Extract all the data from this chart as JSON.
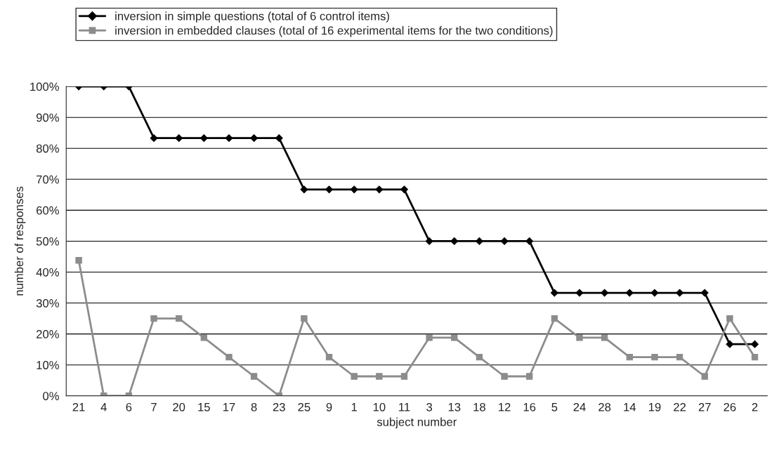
{
  "chart_data": {
    "type": "line",
    "xlabel": "subject number",
    "ylabel": "number of responses",
    "categories": [
      "21",
      "4",
      "6",
      "7",
      "20",
      "15",
      "17",
      "8",
      "23",
      "25",
      "9",
      "1",
      "10",
      "11",
      "3",
      "13",
      "18",
      "12",
      "16",
      "5",
      "24",
      "28",
      "14",
      "19",
      "22",
      "27",
      "26",
      "2"
    ],
    "series": [
      {
        "name": "inversion in simple questions (total of 6 control items)",
        "color": "#000000",
        "marker": "diamond",
        "values": [
          100,
          100,
          100,
          83.3,
          83.3,
          83.3,
          83.3,
          83.3,
          83.3,
          66.7,
          66.7,
          66.7,
          66.7,
          66.7,
          50,
          50,
          50,
          50,
          50,
          33.3,
          33.3,
          33.3,
          33.3,
          33.3,
          33.3,
          33.3,
          16.7,
          16.7
        ]
      },
      {
        "name": "inversion in embedded clauses (total of 16 experimental items for the two conditions)",
        "color": "#8c8c8c",
        "marker": "square",
        "values": [
          43.8,
          0,
          0,
          25,
          25,
          18.8,
          12.5,
          6.3,
          0,
          25,
          12.5,
          6.3,
          6.3,
          6.3,
          18.8,
          18.8,
          12.5,
          6.3,
          6.3,
          25,
          18.8,
          18.8,
          12.5,
          12.5,
          12.5,
          6.3,
          25,
          12.5
        ]
      }
    ],
    "ylim": [
      0,
      100
    ],
    "yticks": [
      {
        "value": 0,
        "label": "0%"
      },
      {
        "value": 10,
        "label": "10%"
      },
      {
        "value": 20,
        "label": "20%"
      },
      {
        "value": 30,
        "label": "30%"
      },
      {
        "value": 40,
        "label": "40%"
      },
      {
        "value": 50,
        "label": "50%"
      },
      {
        "value": 60,
        "label": "60%"
      },
      {
        "value": 70,
        "label": "70%"
      },
      {
        "value": 80,
        "label": "80%"
      },
      {
        "value": 90,
        "label": "90%"
      },
      {
        "value": 100,
        "label": "100%"
      }
    ],
    "grid": "y",
    "legend": "top"
  }
}
